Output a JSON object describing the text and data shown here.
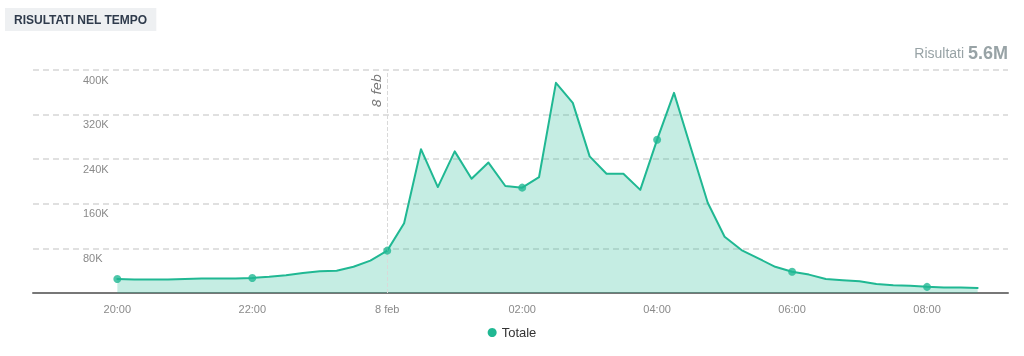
{
  "chart_data": {
    "type": "area",
    "title": "RISULTATI NEL TEMPO",
    "annotations": [
      "Risultati 5.6M"
    ],
    "x": [
      "--02-07T20:00",
      "--02-07T20:15",
      "--02-07T20:30",
      "--02-07T20:45",
      "--02-07T21:00",
      "--02-07T21:15",
      "--02-07T21:30",
      "--02-07T21:45",
      "--02-07T22:00",
      "--02-07T22:15",
      "--02-07T22:30",
      "--02-07T22:45",
      "--02-07T23:00",
      "--02-07T23:15",
      "--02-07T23:30",
      "--02-07T23:45",
      "--02-08T00:00",
      "--02-08T00:15",
      "--02-08T00:30",
      "--02-08T00:45",
      "--02-08T01:00",
      "--02-08T01:15",
      "--02-08T01:30",
      "--02-08T01:45",
      "--02-08T02:00",
      "--02-08T02:15",
      "--02-08T02:30",
      "--02-08T02:45",
      "--02-08T03:00",
      "--02-08T03:15",
      "--02-08T03:30",
      "--02-08T03:45",
      "--02-08T04:00",
      "--02-08T04:15",
      "--02-08T04:30",
      "--02-08T04:45",
      "--02-08T05:00",
      "--02-08T05:15",
      "--02-08T05:30",
      "--02-08T05:45",
      "--02-08T06:00",
      "--02-08T06:15",
      "--02-08T06:30",
      "--02-08T06:45",
      "--02-08T07:00",
      "--02-08T07:15",
      "--02-08T07:30",
      "--02-08T07:45",
      "--02-08T08:00",
      "--02-08T08:15",
      "--02-08T08:30",
      "--02-08T08:45"
    ],
    "series": [
      {
        "name": "Totale",
        "color": "#20b893",
        "values": [
          25000,
          24000,
          24000,
          24000,
          25000,
          26000,
          26000,
          26000,
          27000,
          29000,
          32000,
          36000,
          39000,
          40000,
          47000,
          58000,
          76000,
          125000,
          258000,
          190000,
          254000,
          205000,
          234000,
          192000,
          189000,
          208000,
          377000,
          341000,
          245000,
          214000,
          214000,
          185000,
          275000,
          359000,
          260000,
          162000,
          101000,
          77000,
          62000,
          47000,
          38000,
          33000,
          25000,
          23000,
          21000,
          16000,
          14000,
          13000,
          11000,
          10000,
          10000,
          9000
        ]
      },
      {
        "type": "scatter",
        "color": "#20b893",
        "x": [
          "--02-07T20:00",
          "--02-07T22:00",
          "--02-08T00:00",
          "--02-08T02:00",
          "--02-08T04:00",
          "--02-08T06:00",
          "--02-08T08:00"
        ],
        "values": [
          25000,
          27000,
          76000,
          189000,
          275000,
          38000,
          11000
        ]
      }
    ],
    "xlim": [
      "--02-07T18:45",
      "--02-08T09:12"
    ],
    "xticks": [
      {
        "value": "--02-07T20:00",
        "label": "20:00"
      },
      {
        "value": "--02-07T22:00",
        "label": "22:00"
      },
      {
        "value": "--02-08T00:00",
        "label": "8 feb"
      },
      {
        "value": "--02-08T02:00",
        "label": "02:00"
      },
      {
        "value": "--02-08T04:00",
        "label": "04:00"
      },
      {
        "value": "--02-08T06:00",
        "label": "06:00"
      },
      {
        "value": "--02-08T08:00",
        "label": "08:00"
      }
    ],
    "ylim": [
      0,
      400000
    ],
    "yticks": [
      {
        "value": 80000,
        "label": "80K"
      },
      {
        "value": 160000,
        "label": "160K"
      },
      {
        "value": 240000,
        "label": "240K"
      },
      {
        "value": 320000,
        "label": "320K"
      },
      {
        "value": 400000,
        "label": "400K"
      }
    ],
    "ref_lines": [
      {
        "axis": "x",
        "value": "--02-08T00:00",
        "label": "8 feb",
        "color": "#d9d9d9",
        "line_style": "dashed"
      }
    ],
    "grid": "y",
    "legend": "bottom",
    "line_style": "solid"
  }
}
